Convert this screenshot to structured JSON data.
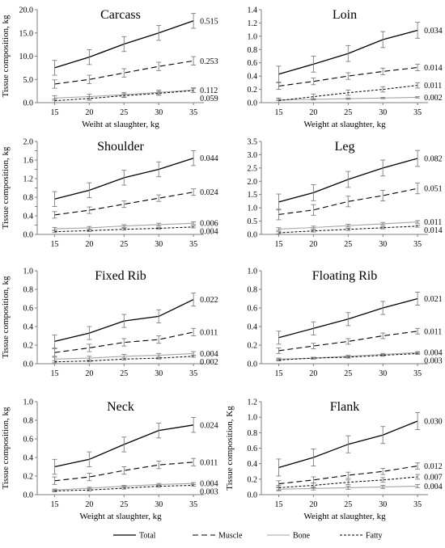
{
  "chart_data": [
    {
      "type": "line",
      "title": "Carcass",
      "xlabel": "Weiht at slaughter, kg",
      "ylabel": "Tissue composition, kg",
      "x": [
        15,
        20,
        25,
        30,
        35
      ],
      "ylim": [
        0,
        20
      ],
      "yticks": [
        "0.0",
        "5.0",
        "10.0",
        "15.0",
        "20.0"
      ],
      "series": [
        {
          "name": "Total",
          "values": [
            7.5,
            9.8,
            12.6,
            15.0,
            17.6
          ],
          "err": [
            1.6,
            1.6,
            1.6,
            1.6,
            1.6
          ],
          "end_label": "0.515"
        },
        {
          "name": "Muscle",
          "values": [
            4.0,
            5.0,
            6.4,
            7.8,
            9.0
          ],
          "err": [
            0.9,
            0.9,
            0.9,
            0.9,
            0.9
          ],
          "end_label": "0.253"
        },
        {
          "name": "Bone",
          "values": [
            1.0,
            1.3,
            1.7,
            2.2,
            2.7
          ],
          "err": [
            0.5,
            0.5,
            0.5,
            0.5,
            0.5
          ],
          "end_label": "0.112"
        },
        {
          "name": "Fatty",
          "values": [
            0.4,
            0.9,
            1.5,
            2.0,
            2.6
          ],
          "err": [
            0.4,
            0.4,
            0.4,
            0.4,
            0.4
          ],
          "end_label": "0.059"
        }
      ]
    },
    {
      "type": "line",
      "title": "Loin",
      "xlabel": "Weight at slaughter, kg",
      "ylabel": "",
      "x": [
        15,
        20,
        25,
        30,
        35
      ],
      "ylim": [
        0,
        1.4
      ],
      "yticks": [
        "0.0",
        "0.2",
        "0.4",
        "0.6",
        "0.8",
        "1.0",
        "1.2",
        "1.4"
      ],
      "series": [
        {
          "name": "Total",
          "values": [
            0.43,
            0.58,
            0.74,
            0.95,
            1.09
          ],
          "err": [
            0.12,
            0.12,
            0.12,
            0.12,
            0.12
          ],
          "end_label": "0.034"
        },
        {
          "name": "Muscle",
          "values": [
            0.25,
            0.32,
            0.4,
            0.47,
            0.53
          ],
          "err": [
            0.05,
            0.05,
            0.05,
            0.05,
            0.05
          ],
          "end_label": "0.014"
        },
        {
          "name": "Bone",
          "values": [
            0.04,
            0.05,
            0.06,
            0.07,
            0.08
          ],
          "err": [
            0.01,
            0.01,
            0.01,
            0.01,
            0.01
          ],
          "end_label": "0.002"
        },
        {
          "name": "Fatty",
          "values": [
            0.03,
            0.09,
            0.15,
            0.2,
            0.26
          ],
          "err": [
            0.04,
            0.04,
            0.04,
            0.04,
            0.04
          ],
          "end_label": "0.011"
        }
      ]
    },
    {
      "type": "line",
      "title": "Shoulder",
      "xlabel": "",
      "ylabel": "Tissue composition, kg",
      "x": [
        15,
        20,
        25,
        30,
        35
      ],
      "ylim": [
        0,
        2.0
      ],
      "yticks": [
        "0.0",
        "0.4",
        "0.8",
        "1.2",
        "1.6",
        "2.0"
      ],
      "extra_ticks": [
        "0.2",
        "0.6",
        "1.0",
        "1.4",
        "1.8"
      ],
      "series": [
        {
          "name": "Total",
          "values": [
            0.76,
            0.95,
            1.22,
            1.4,
            1.64
          ],
          "err": [
            0.16,
            0.16,
            0.16,
            0.16,
            0.16
          ],
          "end_label": "0.044"
        },
        {
          "name": "Muscle",
          "values": [
            0.42,
            0.52,
            0.65,
            0.78,
            0.91
          ],
          "err": [
            0.07,
            0.07,
            0.07,
            0.07,
            0.07
          ],
          "end_label": "0.024"
        },
        {
          "name": "Bone",
          "values": [
            0.12,
            0.14,
            0.18,
            0.21,
            0.24
          ],
          "err": [
            0.03,
            0.03,
            0.03,
            0.03,
            0.03
          ],
          "end_label": "0.006"
        },
        {
          "name": "Fatty",
          "values": [
            0.06,
            0.08,
            0.11,
            0.13,
            0.16
          ],
          "err": [
            0.02,
            0.02,
            0.02,
            0.02,
            0.02
          ],
          "end_label": "0.004"
        }
      ]
    },
    {
      "type": "line",
      "title": "Leg",
      "xlabel": "",
      "ylabel": "",
      "x": [
        15,
        20,
        25,
        30,
        35
      ],
      "ylim": [
        0,
        3.5
      ],
      "yticks": [
        "0.0",
        "0.5",
        "1.0",
        "1.5",
        "2.0",
        "2.5",
        "3.0",
        "3.5"
      ],
      "series": [
        {
          "name": "Total",
          "values": [
            1.22,
            1.57,
            2.07,
            2.5,
            2.86
          ],
          "err": [
            0.3,
            0.3,
            0.3,
            0.3,
            0.3
          ],
          "end_label": "0.082"
        },
        {
          "name": "Muscle",
          "values": [
            0.75,
            0.92,
            1.24,
            1.46,
            1.73
          ],
          "err": [
            0.2,
            0.2,
            0.2,
            0.2,
            0.2
          ],
          "end_label": "0.051"
        },
        {
          "name": "Bone",
          "values": [
            0.2,
            0.26,
            0.33,
            0.4,
            0.47
          ],
          "err": [
            0.05,
            0.05,
            0.05,
            0.05,
            0.05
          ],
          "end_label": "0.011"
        },
        {
          "name": "Fatty",
          "values": [
            0.06,
            0.13,
            0.19,
            0.25,
            0.31
          ],
          "err": [
            0.04,
            0.04,
            0.04,
            0.04,
            0.04
          ],
          "end_label": "0.014"
        }
      ]
    },
    {
      "type": "line",
      "title": "Fixed Rib",
      "xlabel": "",
      "ylabel": "Tissue composition, kg",
      "x": [
        15,
        20,
        25,
        30,
        35
      ],
      "ylim": [
        0,
        1.0
      ],
      "yticks": [
        "0.0",
        "0.2",
        "0.4",
        "0.6",
        "0.8",
        "1.0"
      ],
      "series": [
        {
          "name": "Total",
          "values": [
            0.24,
            0.33,
            0.46,
            0.51,
            0.69
          ],
          "err": [
            0.07,
            0.07,
            0.07,
            0.07,
            0.07
          ],
          "end_label": "0.022"
        },
        {
          "name": "Muscle",
          "values": [
            0.12,
            0.17,
            0.23,
            0.26,
            0.34
          ],
          "err": [
            0.04,
            0.04,
            0.04,
            0.04,
            0.04
          ],
          "end_label": "0.011"
        },
        {
          "name": "Bone",
          "values": [
            0.05,
            0.06,
            0.08,
            0.09,
            0.11
          ],
          "err": [
            0.02,
            0.02,
            0.02,
            0.02,
            0.02
          ],
          "end_label": "0.004"
        },
        {
          "name": "Fatty",
          "values": [
            0.02,
            0.03,
            0.05,
            0.06,
            0.08
          ],
          "err": [
            0.01,
            0.01,
            0.01,
            0.01,
            0.01
          ],
          "end_label": "0.002"
        }
      ]
    },
    {
      "type": "line",
      "title": "Floating Rib",
      "xlabel": "",
      "ylabel": "",
      "x": [
        15,
        20,
        25,
        30,
        35
      ],
      "ylim": [
        0,
        1.0
      ],
      "yticks": [
        "0.0",
        "0.2",
        "0.4",
        "0.6",
        "0.8",
        "1.0"
      ],
      "series": [
        {
          "name": "Total",
          "values": [
            0.28,
            0.38,
            0.48,
            0.6,
            0.7
          ],
          "err": [
            0.07,
            0.07,
            0.07,
            0.07,
            0.07
          ],
          "end_label": "0.021"
        },
        {
          "name": "Muscle",
          "values": [
            0.14,
            0.19,
            0.24,
            0.3,
            0.35
          ],
          "err": [
            0.03,
            0.03,
            0.03,
            0.03,
            0.03
          ],
          "end_label": "0.011"
        },
        {
          "name": "Bone",
          "values": [
            0.05,
            0.06,
            0.08,
            0.1,
            0.12
          ],
          "err": [
            0.01,
            0.01,
            0.01,
            0.01,
            0.01
          ],
          "end_label": "0.004"
        },
        {
          "name": "Fatty",
          "values": [
            0.04,
            0.06,
            0.07,
            0.09,
            0.11
          ],
          "err": [
            0.01,
            0.01,
            0.01,
            0.01,
            0.01
          ],
          "end_label": "0.003"
        }
      ]
    },
    {
      "type": "line",
      "title": "Neck",
      "xlabel": "Weight at slaughter, kg",
      "ylabel": "Tissue composition, kg",
      "x": [
        15,
        20,
        25,
        30,
        35
      ],
      "ylim": [
        0,
        1.0
      ],
      "yticks": [
        "0.0",
        "0.2",
        "0.4",
        "0.6",
        "0.8",
        "1.0"
      ],
      "series": [
        {
          "name": "Total",
          "values": [
            0.3,
            0.38,
            0.54,
            0.69,
            0.75
          ],
          "err": [
            0.08,
            0.08,
            0.08,
            0.08,
            0.08
          ],
          "end_label": "0.024"
        },
        {
          "name": "Muscle",
          "values": [
            0.15,
            0.19,
            0.26,
            0.32,
            0.35
          ],
          "err": [
            0.04,
            0.04,
            0.04,
            0.04,
            0.04
          ],
          "end_label": "0.011"
        },
        {
          "name": "Bone",
          "values": [
            0.05,
            0.07,
            0.09,
            0.11,
            0.12
          ],
          "err": [
            0.01,
            0.01,
            0.01,
            0.01,
            0.01
          ],
          "end_label": "0.004"
        },
        {
          "name": "Fatty",
          "values": [
            0.04,
            0.05,
            0.07,
            0.09,
            0.1
          ],
          "err": [
            0.01,
            0.01,
            0.01,
            0.01,
            0.01
          ],
          "end_label": "0.003"
        }
      ]
    },
    {
      "type": "line",
      "title": "Flank",
      "xlabel": "Weight at slaughter, kg",
      "ylabel": "Tissue composition, Kg",
      "x": [
        15,
        20,
        25,
        30,
        35
      ],
      "ylim": [
        0,
        1.2
      ],
      "yticks": [
        "0.0",
        "0.2",
        "0.4",
        "0.6",
        "0.8",
        "1.0",
        "1.2"
      ],
      "series": [
        {
          "name": "Total",
          "values": [
            0.35,
            0.48,
            0.65,
            0.77,
            0.95
          ],
          "err": [
            0.11,
            0.11,
            0.11,
            0.11,
            0.11
          ],
          "end_label": "0.030"
        },
        {
          "name": "Muscle",
          "values": [
            0.14,
            0.19,
            0.25,
            0.3,
            0.37
          ],
          "err": [
            0.04,
            0.04,
            0.04,
            0.04,
            0.04
          ],
          "end_label": "0.012"
        },
        {
          "name": "Bone",
          "values": [
            0.07,
            0.08,
            0.09,
            0.1,
            0.11
          ],
          "err": [
            0.02,
            0.02,
            0.02,
            0.02,
            0.02
          ],
          "end_label": "0.004"
        },
        {
          "name": "Fatty",
          "values": [
            0.09,
            0.12,
            0.16,
            0.19,
            0.23
          ],
          "err": [
            0.03,
            0.03,
            0.03,
            0.03,
            0.03
          ],
          "end_label": "0.007"
        }
      ]
    }
  ],
  "legend": {
    "placement": "bottom-center",
    "items": [
      {
        "label": "Total",
        "style": "solid",
        "color": "#000000"
      },
      {
        "label": "Muscle",
        "style": "long-dash",
        "color": "#000000"
      },
      {
        "label": "Bone",
        "style": "solid-light",
        "color": "#a6a6a6"
      },
      {
        "label": "Fatty",
        "style": "short-dash",
        "color": "#000000"
      }
    ]
  },
  "colors": {
    "axis": "#7f7f7f",
    "total": "#000000",
    "muscle": "#000000",
    "bone": "#a6a6a6",
    "fatty": "#000000",
    "error_bar": "#7f7f7f"
  }
}
